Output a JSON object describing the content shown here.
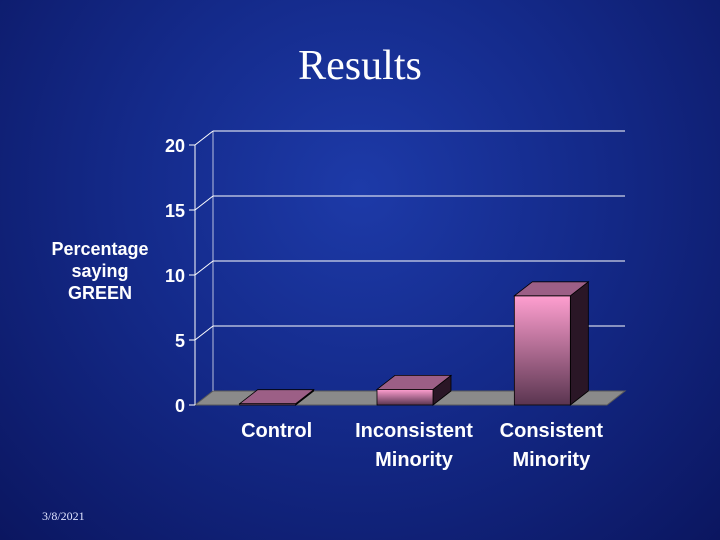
{
  "slide": {
    "title": "Results",
    "date": "3/8/2021"
  },
  "chart_data": {
    "type": "bar",
    "style": "3d",
    "categories": [
      [
        "Control"
      ],
      [
        "Inconsistent",
        "Minority"
      ],
      [
        "Consistent",
        "Minority"
      ]
    ],
    "values": [
      0.1,
      1.2,
      8.4
    ],
    "ylabel": [
      "Percentage",
      "saying",
      "GREEN"
    ],
    "yticks": [
      0,
      5,
      10,
      15,
      20
    ],
    "ylim": [
      0,
      20
    ],
    "grid": true,
    "colors": {
      "bar_front_top": "#ff9fd0",
      "bar_front_bottom": "#5a3550",
      "bar_top": "#9c5f86",
      "bar_side": "#2a1626",
      "floor": "#8a8a8a",
      "gridline": "#ffffff"
    }
  }
}
